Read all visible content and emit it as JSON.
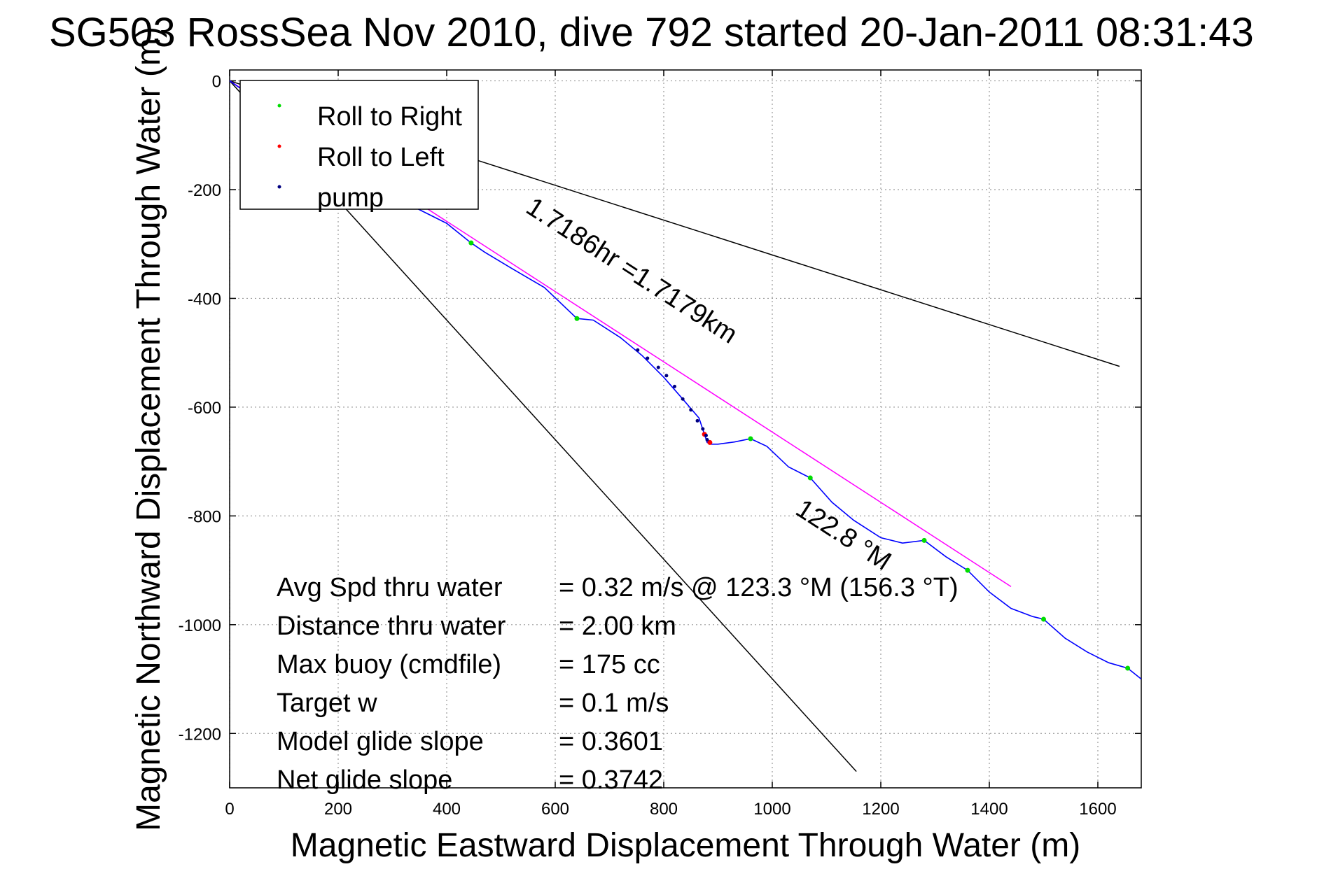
{
  "chart_data": {
    "type": "line",
    "title": "SG503 RossSea Nov 2010, dive 792 started 20-Jan-2011 08:31:43",
    "xlabel": "Magnetic Eastward Displacement Through Water (m)",
    "ylabel": "Magnetic Northward Displacement Through Water (m)",
    "xlim": [
      0,
      1680
    ],
    "ylim": [
      -1300,
      20
    ],
    "xticks": [
      0,
      200,
      400,
      600,
      800,
      1000,
      1200,
      1400,
      1600
    ],
    "yticks": [
      0,
      -200,
      -400,
      -600,
      -800,
      -1000,
      -1200
    ],
    "grid": true,
    "legend_position": "top-left",
    "legend": [
      {
        "label": "Roll to Right",
        "color": "#00dd00"
      },
      {
        "label": "Roll to Left",
        "color": "#ff0000"
      },
      {
        "label": "pump",
        "color": "#000080"
      }
    ],
    "track": {
      "color": "#0000ff",
      "x": [
        0,
        40,
        90,
        140,
        190,
        240,
        290,
        340,
        400,
        445,
        470,
        520,
        580,
        640,
        670,
        720,
        760,
        800,
        835,
        865,
        875,
        880,
        887,
        900,
        930,
        960,
        990,
        1030,
        1070,
        1110,
        1150,
        1200,
        1240,
        1280,
        1320,
        1360,
        1400,
        1440,
        1480,
        1500,
        1540,
        1580,
        1620,
        1655,
        1680
      ],
      "y": [
        0,
        -28,
        -60,
        -100,
        -135,
        -168,
        -198,
        -232,
        -262,
        -298,
        -315,
        -345,
        -380,
        -437,
        -440,
        -472,
        -505,
        -545,
        -585,
        -620,
        -650,
        -665,
        -668,
        -668,
        -664,
        -658,
        -672,
        -710,
        -730,
        -775,
        -808,
        -840,
        -850,
        -845,
        -875,
        -900,
        -940,
        -970,
        -985,
        -990,
        -1025,
        -1050,
        -1070,
        -1080,
        -1100
      ]
    },
    "roll_right": {
      "x": [
        445,
        640,
        960,
        1070,
        1280,
        1360,
        1500,
        1655
      ],
      "y": [
        -298,
        -437,
        -658,
        -730,
        -845,
        -900,
        -990,
        -1080
      ]
    },
    "roll_left": {
      "x": [
        875,
        885
      ],
      "y": [
        -650,
        -665
      ]
    },
    "pump": {
      "x": [
        752,
        770,
        790,
        805,
        820,
        835,
        850,
        862,
        872,
        878,
        880
      ],
      "y": [
        -495,
        -510,
        -527,
        -542,
        -562,
        -585,
        -605,
        -625,
        -640,
        -652,
        -660
      ]
    },
    "direction_line": {
      "x": [
        0,
        1440
      ],
      "y": [
        0,
        -930
      ],
      "color": "#ff00ff"
    },
    "bound_line_upper": {
      "x": [
        0,
        1640
      ],
      "y": [
        0,
        -525
      ],
      "color": "#000000"
    },
    "bound_line_lower": {
      "x": [
        0,
        1155
      ],
      "y": [
        0,
        -1270
      ],
      "color": "#000000"
    },
    "annotations": [
      {
        "text": "1.7186hr =1.7179km",
        "x": 543,
        "y": -240,
        "rotation": 32.9
      },
      {
        "text": "122.8 °M",
        "x": 1040,
        "y": -795,
        "rotation": 32.9
      }
    ],
    "stats": [
      {
        "label": "Avg Spd thru water",
        "value": "=  0.32 m/s @ 123.3 °M (156.3 °T)"
      },
      {
        "label": "Distance thru water",
        "value": "=  2.00 km"
      },
      {
        "label": "Max buoy (cmdfile)",
        "value": "= 175 cc"
      },
      {
        "label": "Target w",
        "value": "= 0.1 m/s"
      },
      {
        "label": "Model glide slope",
        "value": "= 0.3601"
      },
      {
        "label": "Net glide slope",
        "value": "= 0.3742"
      }
    ]
  }
}
